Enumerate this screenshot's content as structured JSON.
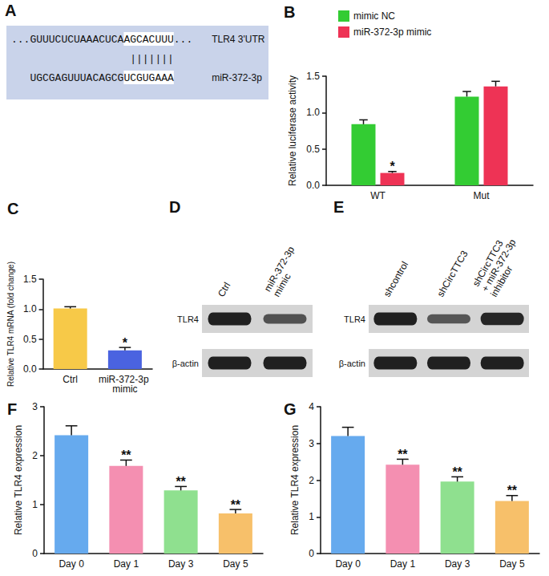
{
  "chart_data": [
    {
      "type": "bar",
      "title": "B",
      "categories": [
        "WT",
        "Mut"
      ],
      "series": [
        {
          "name": "mimic NC",
          "color": "#33cc33",
          "values": [
            0.84,
            1.22
          ],
          "errors": [
            0.06,
            0.07
          ]
        },
        {
          "name": "miR-372-3p mimic",
          "color": "#ee3355",
          "values": [
            0.17,
            1.36
          ],
          "errors": [
            0.02,
            0.07
          ]
        }
      ],
      "ylabel": "Relative luciferase activity",
      "ylim": [
        0,
        1.5
      ],
      "yticks": [
        {
          "value": 0,
          "label": "0.0"
        },
        0.5,
        {
          "value": 1,
          "label": "1.0"
        },
        1.5
      ],
      "grid": false,
      "legend": "upper left",
      "annotations": [
        {
          "text": "*",
          "category": "WT",
          "series": "miR-372-3p mimic"
        }
      ]
    },
    {
      "type": "bar",
      "title": "C",
      "categories": [
        "Ctrl",
        "miR-372-3p mimic"
      ],
      "values": [
        1.01,
        0.31
      ],
      "errors": [
        0.03,
        0.05
      ],
      "colors": [
        "#f7c948",
        "#4a63e0"
      ],
      "ylabel": "Relative TLR4 mRNA (fold change)",
      "ylim": [
        0,
        1.5
      ],
      "yticks": [
        {
          "value": 0,
          "label": "0.0"
        },
        0.5,
        {
          "value": 1,
          "label": "1.0"
        },
        1.5
      ],
      "grid": false,
      "annotations": [
        {
          "text": "*",
          "category": "miR-372-3p mimic"
        }
      ]
    },
    {
      "type": "bar",
      "title": "F",
      "categories": [
        "Day 0",
        "Day 1",
        "Day 3",
        "Day 5"
      ],
      "values": [
        2.42,
        1.79,
        1.29,
        0.82
      ],
      "errors": [
        0.19,
        0.12,
        0.08,
        0.08
      ],
      "colors": [
        "#66aaee",
        "#f48fb1",
        "#8fe08f",
        "#f7c06a"
      ],
      "ylabel": "Relative TLR4 expression",
      "ylim": [
        0,
        3
      ],
      "yticks": [
        0,
        1,
        2,
        3
      ],
      "grid": false,
      "annotations": [
        {
          "text": "**",
          "category": "Day 1"
        },
        {
          "text": "**",
          "category": "Day 3"
        },
        {
          "text": "**",
          "category": "Day 5"
        }
      ]
    },
    {
      "type": "bar",
      "title": "G",
      "categories": [
        "Day 0",
        "Day 1",
        "Day 3",
        "Day 5"
      ],
      "values": [
        3.2,
        2.42,
        1.96,
        1.43
      ],
      "errors": [
        0.24,
        0.15,
        0.13,
        0.15
      ],
      "colors": [
        "#66aaee",
        "#f48fb1",
        "#8fe08f",
        "#f7c06a"
      ],
      "ylabel": "Relative TLR4 expression",
      "ylim": [
        0,
        4
      ],
      "yticks": [
        0,
        1,
        2,
        3,
        4
      ],
      "grid": false,
      "annotations": [
        {
          "text": "**",
          "category": "Day 1"
        },
        {
          "text": "**",
          "category": "Day 3"
        },
        {
          "text": "**",
          "category": "Day 5"
        }
      ]
    }
  ],
  "sequence_panel": {
    "panel": "A",
    "target": {
      "parts": [
        "...GUUUCUCUAAACUCA",
        "AGCACUUU",
        "..."
      ],
      "label": "TLR4 3'UTR"
    },
    "pairing": "|||||||",
    "mirna": {
      "parts": [
        "UGCGAGUUUACAGCG",
        "UCGUGAAA"
      ],
      "label": "miR-372-3p"
    }
  },
  "blots": [
    {
      "panel": "D",
      "lanes": [
        [
          "Ctrl"
        ],
        [
          "miR-372-3p",
          "mimic"
        ]
      ],
      "rows": [
        {
          "label": "TLR4",
          "intensity": [
            1.0,
            0.6
          ]
        },
        {
          "label": "β-actin",
          "intensity": [
            1.0,
            1.0
          ]
        }
      ]
    },
    {
      "panel": "E",
      "lanes": [
        [
          "shcontrol"
        ],
        [
          "shCircTTC3"
        ],
        [
          "shCircTTC3",
          "+ miR-372-3p",
          "inhibitor"
        ]
      ],
      "rows": [
        {
          "label": "TLR4",
          "intensity": [
            1.0,
            0.55,
            0.95
          ]
        },
        {
          "label": "β-actin",
          "intensity": [
            1.0,
            1.0,
            1.0
          ]
        }
      ]
    }
  ]
}
